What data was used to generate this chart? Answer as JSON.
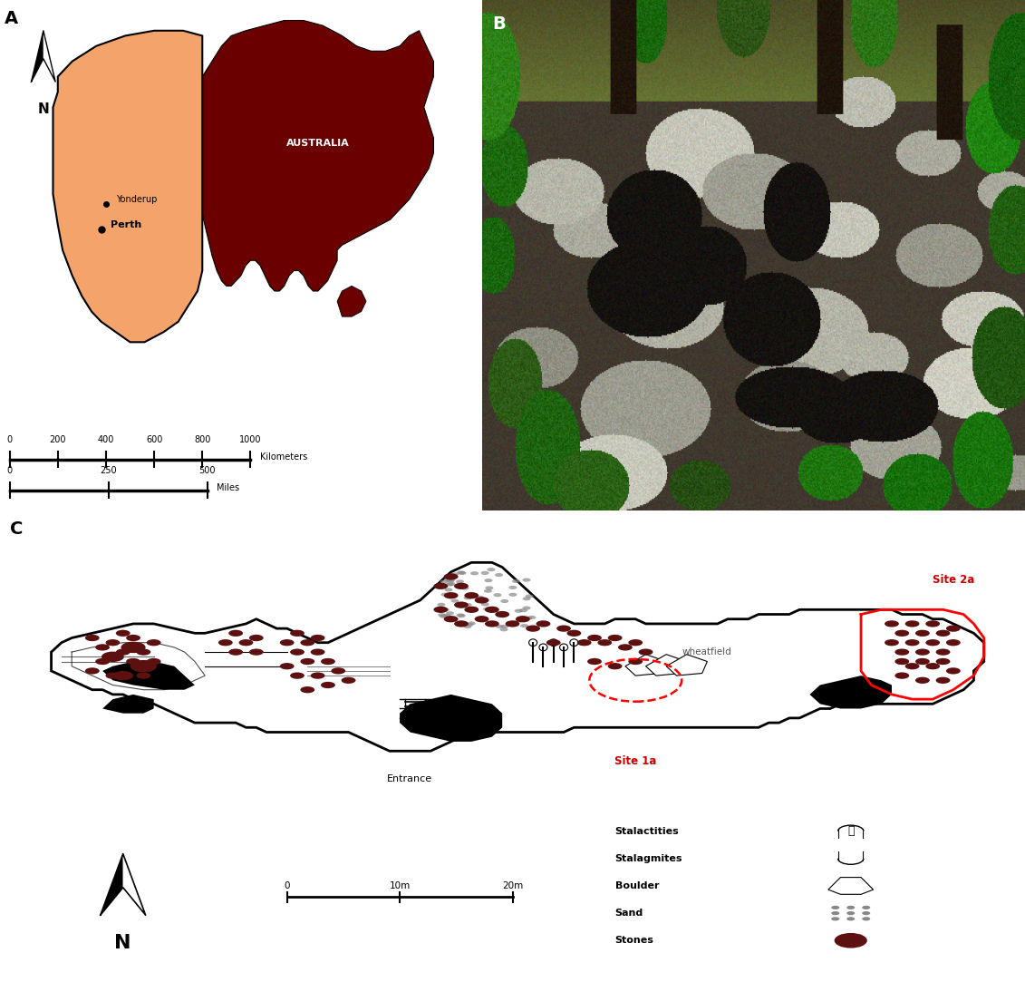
{
  "panel_A_label": "A",
  "panel_B_label": "B",
  "panel_C_label": "C",
  "australia_color": "#6B0000",
  "wa_color": "#F4A46A",
  "australia_label": "AUSTRALIA",
  "yonderup_label": "Yonderup",
  "perth_label": "Perth",
  "scale_km": [
    0,
    200,
    400,
    600,
    800,
    1000
  ],
  "scale_miles": [
    0,
    250,
    500
  ],
  "scale_km_label": "Kilometers",
  "scale_miles_label": "Miles",
  "north_label": "N",
  "site1a_label": "Site 1a",
  "site2a_label": "Site 2a",
  "wheatfield_label": "wheatfield",
  "entrance_label": "Entrance",
  "legend_items": [
    "Stalactities",
    "Stalagmites",
    "Boulder",
    "Sand",
    "Stones"
  ],
  "cave_scale": [
    "0",
    "10m",
    "20m"
  ],
  "stone_color": "#5C1010",
  "site_label_color": "#CC0000",
  "bg_color": "#FFFFFF"
}
